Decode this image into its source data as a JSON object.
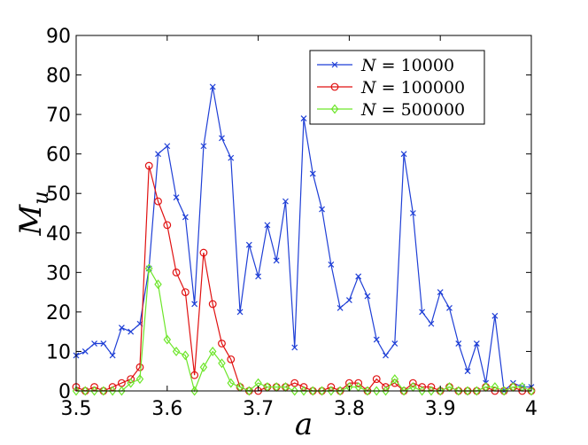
{
  "chart_data": {
    "type": "line",
    "xlabel": "a",
    "ylabel": "M",
    "ylabel_sub": "u",
    "xlim": [
      3.5,
      4.0
    ],
    "ylim": [
      0,
      90
    ],
    "x_ticks": [
      3.5,
      3.6,
      3.7,
      3.8,
      3.9,
      4.0
    ],
    "x_tick_labels": [
      "3.5",
      "3.6",
      "3.7",
      "3.8",
      "3.9",
      "4"
    ],
    "y_ticks": [
      0,
      10,
      20,
      30,
      40,
      50,
      60,
      70,
      80,
      90
    ],
    "y_tick_labels": [
      "0",
      "10",
      "20",
      "30",
      "40",
      "50",
      "60",
      "70",
      "80",
      "90"
    ],
    "grid": false,
    "legend_position": "top-right",
    "x": [
      3.5,
      3.51,
      3.52,
      3.53,
      3.54,
      3.55,
      3.56,
      3.57,
      3.58,
      3.59,
      3.6,
      3.61,
      3.62,
      3.63,
      3.64,
      3.65,
      3.66,
      3.67,
      3.68,
      3.69,
      3.7,
      3.71,
      3.72,
      3.73,
      3.74,
      3.75,
      3.76,
      3.77,
      3.78,
      3.79,
      3.8,
      3.81,
      3.82,
      3.83,
      3.84,
      3.85,
      3.86,
      3.87,
      3.88,
      3.89,
      3.9,
      3.91,
      3.92,
      3.93,
      3.94,
      3.95,
      3.96,
      3.97,
      3.98,
      3.99,
      4.0
    ],
    "series": [
      {
        "name": "N = 10000",
        "legend_var": "N",
        "legend_eq": "= 10000",
        "color": "#1f3fd6",
        "marker": "x",
        "values": [
          9,
          10,
          12,
          12,
          9,
          16,
          15,
          17,
          31,
          60,
          62,
          49,
          44,
          22,
          62,
          77,
          64,
          59,
          20,
          37,
          29,
          42,
          33,
          48,
          11,
          69,
          55,
          46,
          32,
          21,
          23,
          29,
          24,
          13,
          9,
          12,
          60,
          45,
          20,
          17,
          25,
          21,
          12,
          5,
          12,
          2,
          19,
          0,
          2,
          1,
          1
        ]
      },
      {
        "name": "N = 100000",
        "legend_var": "N",
        "legend_eq": "= 100000",
        "color": "#e01010",
        "marker": "o",
        "values": [
          1,
          0,
          1,
          0,
          1,
          2,
          3,
          6,
          57,
          48,
          42,
          30,
          25,
          4,
          35,
          22,
          12,
          8,
          1,
          0,
          0,
          1,
          1,
          1,
          2,
          1,
          0,
          0,
          1,
          0,
          2,
          2,
          0,
          3,
          1,
          2,
          0,
          2,
          1,
          1,
          0,
          1,
          0,
          0,
          0,
          1,
          0,
          0,
          1,
          0,
          0
        ]
      },
      {
        "name": "N = 500000",
        "legend_var": "N",
        "legend_eq": "= 500000",
        "color": "#6de62a",
        "marker": "diamond",
        "values": [
          0,
          0,
          0,
          0,
          0,
          0,
          2,
          3,
          31,
          27,
          13,
          10,
          9,
          0,
          6,
          10,
          7,
          2,
          1,
          0,
          2,
          1,
          1,
          1,
          0,
          0,
          0,
          0,
          0,
          0,
          1,
          1,
          0,
          0,
          0,
          3,
          0,
          1,
          0,
          0,
          0,
          1,
          0,
          0,
          0,
          1,
          1,
          0,
          1,
          1,
          0
        ]
      }
    ]
  }
}
